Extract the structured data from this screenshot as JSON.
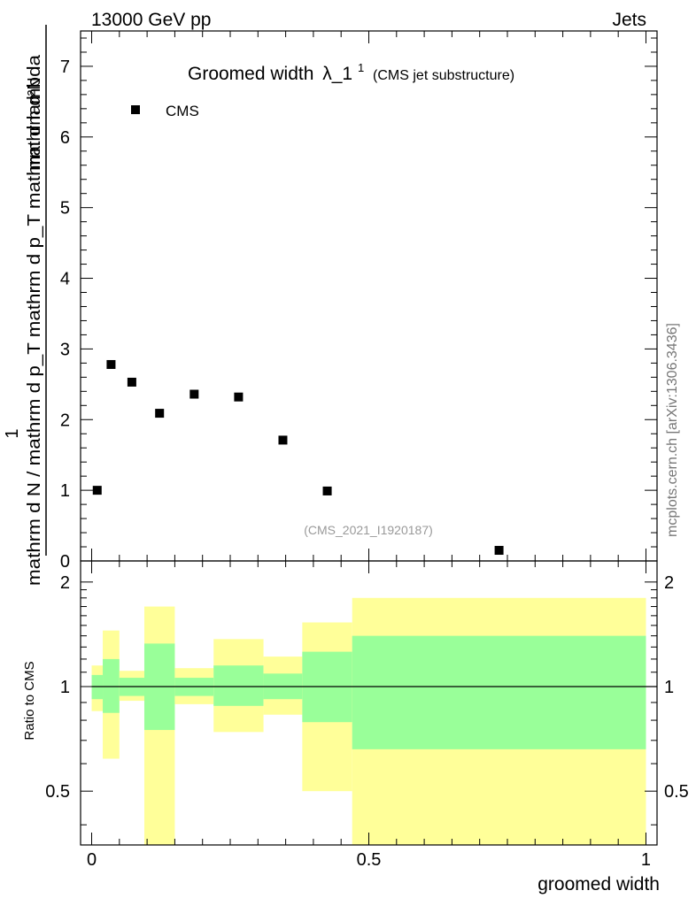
{
  "header": {
    "left": "13000 GeV pp",
    "right": "Jets"
  },
  "side_label": "mcplots.cern.ch [arXiv:1306.3436]",
  "colors": {
    "band_outer": "#ffff99",
    "band_inner": "#99ff99",
    "marker": "#000000"
  },
  "chart_data": [
    {
      "type": "scatter",
      "title": "Groomed width",
      "title_symbol": "λ_1",
      "title_sup": "1",
      "title_sub": "(CMS jet substructure)",
      "ylabel_top": "mathrm d²N",
      "ylabel_bottom": "mathrm d N / mathrm d p_T mathrm d p_T mathrm d lambda",
      "ylabel_prefix": "1",
      "analysis_label": "(CMS_2021_I1920187)",
      "legend": [
        {
          "name": "CMS",
          "position": "top-left"
        }
      ],
      "xlim": [
        -0.02,
        1.02
      ],
      "ylim": [
        0,
        7.5
      ],
      "y_ticks": [
        "1",
        "2",
        "3",
        "4",
        "5",
        "6",
        "7"
      ],
      "zero_tick_label": "0",
      "series": [
        {
          "name": "CMS",
          "x": [
            0.01,
            0.035,
            0.0725,
            0.1225,
            0.185,
            0.265,
            0.345,
            0.425,
            0.735
          ],
          "y": [
            1.0,
            2.78,
            2.53,
            2.09,
            2.36,
            2.32,
            1.71,
            0.99,
            0.15
          ]
        }
      ]
    },
    {
      "type": "area",
      "ylabel": "Ratio to CMS",
      "xlabel": "groomed width",
      "xlim": [
        -0.02,
        1.02
      ],
      "ylim": [
        0.35,
        2.3
      ],
      "x_ticks": [
        "0",
        "0.5",
        "1"
      ],
      "y_ticks": [
        "0.5",
        "1",
        "2"
      ],
      "reference_line": 1,
      "bins": [
        {
          "lo": 0.0,
          "hi": 0.02,
          "inner": [
            0.92,
            1.08
          ],
          "outer": [
            0.85,
            1.15
          ]
        },
        {
          "lo": 0.02,
          "hi": 0.05,
          "inner": [
            0.84,
            1.2
          ],
          "outer": [
            0.62,
            1.45
          ]
        },
        {
          "lo": 0.05,
          "hi": 0.095,
          "inner": [
            0.94,
            1.06
          ],
          "outer": [
            0.91,
            1.11
          ]
        },
        {
          "lo": 0.095,
          "hi": 0.15,
          "inner": [
            0.75,
            1.33
          ],
          "outer": [
            0.3,
            1.7
          ]
        },
        {
          "lo": 0.15,
          "hi": 0.22,
          "inner": [
            0.94,
            1.06
          ],
          "outer": [
            0.89,
            1.13
          ]
        },
        {
          "lo": 0.22,
          "hi": 0.31,
          "inner": [
            0.88,
            1.15
          ],
          "outer": [
            0.74,
            1.37
          ]
        },
        {
          "lo": 0.31,
          "hi": 0.38,
          "inner": [
            0.92,
            1.09
          ],
          "outer": [
            0.83,
            1.22
          ]
        },
        {
          "lo": 0.38,
          "hi": 0.47,
          "inner": [
            0.79,
            1.26
          ],
          "outer": [
            0.5,
            1.53
          ]
        },
        {
          "lo": 0.47,
          "hi": 1.0,
          "inner": [
            0.66,
            1.4
          ],
          "outer": [
            0.3,
            1.8
          ]
        }
      ]
    }
  ]
}
